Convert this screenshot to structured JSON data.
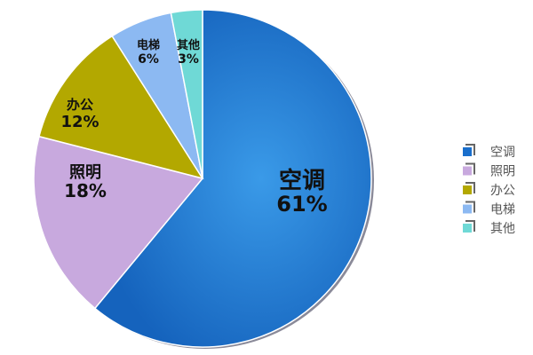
{
  "chart_data": {
    "type": "pie",
    "title": "",
    "start": "top",
    "direction": "clockwise",
    "legend_position": "right",
    "slices": [
      {
        "label": "空调",
        "value": 61,
        "value_label": "61%",
        "color": "#1a6fcc"
      },
      {
        "label": "照明",
        "value": 18,
        "value_label": "18%",
        "color": "#c8a9de"
      },
      {
        "label": "办公",
        "value": 12,
        "value_label": "12%",
        "color": "#b3a800"
      },
      {
        "label": "电梯",
        "value": 6,
        "value_label": "6%",
        "color": "#8cb9f2"
      },
      {
        "label": "其他",
        "value": 3,
        "value_label": "3%",
        "color": "#6fd9d6"
      }
    ]
  }
}
